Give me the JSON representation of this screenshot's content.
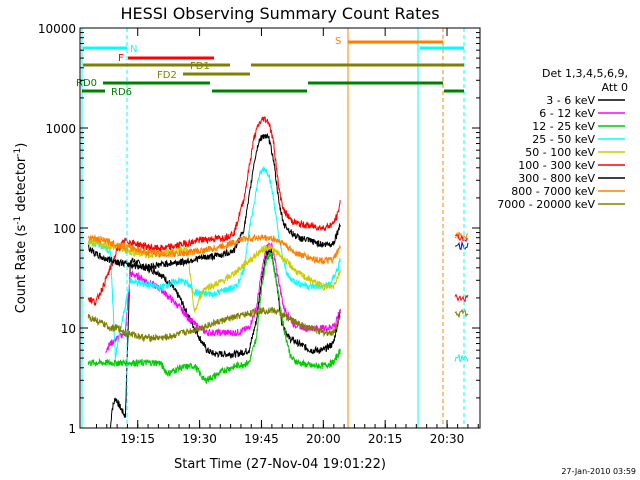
{
  "chart_data": {
    "type": "line",
    "title": "HESSI Observing Summary Count Rates",
    "xlabel": "Start Time (27-Nov-04 19:01:22)",
    "ylabel_main": "Count Rate (s",
    "ylabel_sup1": "-1",
    "ylabel_mid": " detector",
    "ylabel_sup2": "-1",
    "ylabel_end": ")",
    "x_range_minutes": [
      19.0167,
      20.6333
    ],
    "ylim": [
      1,
      10000
    ],
    "yscale": "log",
    "xticks": [
      {
        "t": 19.25,
        "label": "19:15"
      },
      {
        "t": 19.5,
        "label": "19:30"
      },
      {
        "t": 19.75,
        "label": "19:45"
      },
      {
        "t": 20.0,
        "label": "20:00"
      },
      {
        "t": 20.25,
        "label": "20:15"
      },
      {
        "t": 20.5,
        "label": "20:30"
      }
    ],
    "yticks": [
      {
        "v": 1,
        "label": "1"
      },
      {
        "v": 10,
        "label": "10"
      },
      {
        "v": 100,
        "label": "100"
      },
      {
        "v": 1000,
        "label": "1000"
      },
      {
        "v": 10000,
        "label": "10000"
      }
    ],
    "legend": {
      "header": [
        "Det 1,3,4,5,6,9,",
        "Att 0"
      ],
      "position": "right"
    },
    "series": [
      {
        "name": "3 - 6 keV",
        "color": "#000000",
        "points": [
          [
            19.14,
            1.0
          ],
          [
            19.145,
            1.5
          ],
          [
            19.16,
            2.0
          ],
          [
            19.18,
            1.6
          ],
          [
            19.2,
            1.3
          ],
          [
            19.22,
            48
          ],
          [
            19.25,
            45
          ],
          [
            19.28,
            40
          ],
          [
            19.31,
            38
          ],
          [
            19.34,
            35
          ],
          [
            19.38,
            28
          ],
          [
            19.42,
            20
          ],
          [
            19.45,
            14
          ],
          [
            19.48,
            10
          ],
          [
            19.5,
            8
          ],
          [
            19.53,
            6
          ],
          [
            19.56,
            5.5
          ],
          [
            19.6,
            5.5
          ],
          [
            19.65,
            5.5
          ],
          [
            19.7,
            6
          ],
          [
            19.73,
            12
          ],
          [
            19.75,
            30
          ],
          [
            19.77,
            55
          ],
          [
            19.79,
            60
          ],
          [
            19.81,
            30
          ],
          [
            19.83,
            12
          ],
          [
            19.86,
            8
          ],
          [
            19.9,
            7
          ],
          [
            19.95,
            6
          ],
          [
            20.0,
            6
          ],
          [
            20.04,
            7
          ],
          [
            20.07,
            15
          ]
        ]
      },
      {
        "name": "6 - 12 keV",
        "color": "#ff00ff",
        "points": [
          [
            19.12,
            6
          ],
          [
            19.14,
            7
          ],
          [
            19.17,
            8
          ],
          [
            19.2,
            9
          ],
          [
            19.22,
            35
          ],
          [
            19.26,
            32
          ],
          [
            19.3,
            28
          ],
          [
            19.34,
            25
          ],
          [
            19.38,
            20
          ],
          [
            19.42,
            16
          ],
          [
            19.45,
            13
          ],
          [
            19.48,
            11
          ],
          [
            19.5,
            10
          ],
          [
            19.53,
            9
          ],
          [
            19.56,
            9
          ],
          [
            19.6,
            9
          ],
          [
            19.65,
            9
          ],
          [
            19.7,
            10
          ],
          [
            19.73,
            16
          ],
          [
            19.75,
            35
          ],
          [
            19.77,
            65
          ],
          [
            19.79,
            70
          ],
          [
            19.81,
            40
          ],
          [
            19.84,
            16
          ],
          [
            19.88,
            11
          ],
          [
            19.93,
            10
          ],
          [
            19.98,
            10
          ],
          [
            20.02,
            10
          ],
          [
            20.05,
            11
          ],
          [
            20.07,
            16
          ]
        ]
      },
      {
        "name": "12 - 25 keV",
        "color": "#00cc00",
        "points": [
          [
            19.05,
            4.5
          ],
          [
            19.1,
            4.5
          ],
          [
            19.15,
            4.5
          ],
          [
            19.2,
            4.5
          ],
          [
            19.25,
            4.5
          ],
          [
            19.3,
            4.5
          ],
          [
            19.34,
            4.5
          ],
          [
            19.37,
            3.5
          ],
          [
            19.42,
            4
          ],
          [
            19.48,
            4.2
          ],
          [
            19.52,
            3
          ],
          [
            19.56,
            3.3
          ],
          [
            19.6,
            3.8
          ],
          [
            19.65,
            4.2
          ],
          [
            19.7,
            4.5
          ],
          [
            19.73,
            8
          ],
          [
            19.75,
            25
          ],
          [
            19.77,
            50
          ],
          [
            19.79,
            55
          ],
          [
            19.81,
            30
          ],
          [
            19.84,
            10
          ],
          [
            19.87,
            5
          ],
          [
            19.9,
            4.5
          ],
          [
            19.95,
            4.2
          ],
          [
            20.0,
            4.2
          ],
          [
            20.04,
            4.5
          ],
          [
            20.07,
            6
          ]
        ]
      },
      {
        "name": "25 - 50 keV",
        "color": "#00ffff",
        "points": [
          [
            19.05,
            72
          ],
          [
            19.1,
            68
          ],
          [
            19.12,
            63
          ],
          [
            19.14,
            55
          ],
          [
            19.16,
            5
          ],
          [
            19.17,
            7
          ],
          [
            19.22,
            30
          ],
          [
            19.26,
            28
          ],
          [
            19.3,
            27
          ],
          [
            19.34,
            25
          ],
          [
            19.38,
            28
          ],
          [
            19.42,
            30
          ],
          [
            19.45,
            28
          ],
          [
            19.48,
            23
          ],
          [
            19.52,
            22
          ],
          [
            19.56,
            22
          ],
          [
            19.6,
            24
          ],
          [
            19.65,
            26
          ],
          [
            19.68,
            40
          ],
          [
            19.7,
            90
          ],
          [
            19.72,
            180
          ],
          [
            19.74,
            330
          ],
          [
            19.76,
            400
          ],
          [
            19.78,
            350
          ],
          [
            19.8,
            190
          ],
          [
            19.82,
            80
          ],
          [
            19.84,
            45
          ],
          [
            19.86,
            32
          ],
          [
            19.9,
            28
          ],
          [
            19.95,
            26
          ],
          [
            20.0,
            26
          ],
          [
            20.03,
            28
          ],
          [
            20.06,
            40
          ],
          [
            20.07,
            50
          ]
        ]
      },
      {
        "name": "50 - 100 keV",
        "color": "#cccc00",
        "points": [
          [
            19.05,
            72
          ],
          [
            19.1,
            68
          ],
          [
            19.14,
            65
          ],
          [
            19.18,
            62
          ],
          [
            19.22,
            58
          ],
          [
            19.26,
            55
          ],
          [
            19.3,
            54
          ],
          [
            19.34,
            55
          ],
          [
            19.38,
            58
          ],
          [
            19.42,
            62
          ],
          [
            19.45,
            60
          ],
          [
            19.48,
            14
          ],
          [
            19.5,
            20
          ],
          [
            19.52,
            25
          ],
          [
            19.56,
            27
          ],
          [
            19.6,
            30
          ],
          [
            19.65,
            37
          ],
          [
            19.7,
            47
          ],
          [
            19.75,
            60
          ],
          [
            19.78,
            65
          ],
          [
            19.82,
            55
          ],
          [
            19.86,
            44
          ],
          [
            19.9,
            35
          ],
          [
            19.95,
            30
          ],
          [
            20.0,
            26
          ],
          [
            20.04,
            26
          ],
          [
            20.07,
            38
          ]
        ]
      },
      {
        "name": "100 - 300 keV",
        "color": "#ff0000",
        "points": [
          [
            19.05,
            20
          ],
          [
            19.08,
            18
          ],
          [
            19.11,
            26
          ],
          [
            19.14,
            40
          ],
          [
            19.17,
            62
          ],
          [
            19.2,
            75
          ],
          [
            19.24,
            70
          ],
          [
            19.28,
            66
          ],
          [
            19.32,
            63
          ],
          [
            19.36,
            63
          ],
          [
            19.4,
            66
          ],
          [
            19.44,
            70
          ],
          [
            19.47,
            72
          ],
          [
            19.5,
            76
          ],
          [
            19.55,
            78
          ],
          [
            19.6,
            80
          ],
          [
            19.64,
            90
          ],
          [
            19.68,
            200
          ],
          [
            19.7,
            400
          ],
          [
            19.72,
            800
          ],
          [
            19.74,
            1100
          ],
          [
            19.76,
            1250
          ],
          [
            19.78,
            1150
          ],
          [
            19.8,
            700
          ],
          [
            19.82,
            250
          ],
          [
            19.84,
            150
          ],
          [
            19.87,
            120
          ],
          [
            19.9,
            110
          ],
          [
            19.95,
            105
          ],
          [
            20.0,
            100
          ],
          [
            20.04,
            110
          ],
          [
            20.06,
            140
          ],
          [
            20.07,
            200
          ]
        ]
      },
      {
        "name": "300 - 800 keV",
        "color": "#000000",
        "points": [
          [
            19.05,
            64
          ],
          [
            19.08,
            55
          ],
          [
            19.11,
            50
          ],
          [
            19.14,
            48
          ],
          [
            19.17,
            46
          ],
          [
            19.2,
            44
          ],
          [
            19.24,
            42
          ],
          [
            19.28,
            41
          ],
          [
            19.32,
            42
          ],
          [
            19.36,
            44
          ],
          [
            19.4,
            45
          ],
          [
            19.44,
            46
          ],
          [
            19.47,
            48
          ],
          [
            19.5,
            50
          ],
          [
            19.55,
            52
          ],
          [
            19.6,
            55
          ],
          [
            19.64,
            60
          ],
          [
            19.68,
            100
          ],
          [
            19.7,
            200
          ],
          [
            19.72,
            450
          ],
          [
            19.74,
            750
          ],
          [
            19.76,
            850
          ],
          [
            19.78,
            780
          ],
          [
            19.8,
            480
          ],
          [
            19.82,
            180
          ],
          [
            19.84,
            110
          ],
          [
            19.87,
            90
          ],
          [
            19.9,
            80
          ],
          [
            19.95,
            74
          ],
          [
            20.0,
            68
          ],
          [
            20.04,
            70
          ],
          [
            20.07,
            110
          ]
        ]
      },
      {
        "name": "800 - 7000 keV",
        "color": "#ff8000",
        "points": [
          [
            19.05,
            82
          ],
          [
            19.08,
            78
          ],
          [
            19.11,
            75
          ],
          [
            19.14,
            72
          ],
          [
            19.17,
            68
          ],
          [
            19.2,
            65
          ],
          [
            19.24,
            62
          ],
          [
            19.28,
            58
          ],
          [
            19.32,
            56
          ],
          [
            19.36,
            55
          ],
          [
            19.4,
            55
          ],
          [
            19.44,
            56
          ],
          [
            19.47,
            58
          ],
          [
            19.5,
            59
          ],
          [
            19.55,
            62
          ],
          [
            19.6,
            67
          ],
          [
            19.64,
            72
          ],
          [
            19.68,
            78
          ],
          [
            19.72,
            80
          ],
          [
            19.76,
            80
          ],
          [
            19.8,
            78
          ],
          [
            19.84,
            70
          ],
          [
            19.87,
            60
          ],
          [
            19.9,
            55
          ],
          [
            19.95,
            50
          ],
          [
            20.0,
            47
          ],
          [
            20.04,
            48
          ],
          [
            20.07,
            65
          ]
        ]
      },
      {
        "name": "7000 - 20000 keV",
        "color": "#808000",
        "points": [
          [
            19.05,
            13
          ],
          [
            19.08,
            12
          ],
          [
            19.11,
            11
          ],
          [
            19.14,
            10
          ],
          [
            19.17,
            10
          ],
          [
            19.2,
            9
          ],
          [
            19.24,
            8.5
          ],
          [
            19.28,
            8
          ],
          [
            19.32,
            8
          ],
          [
            19.36,
            8
          ],
          [
            19.4,
            8.5
          ],
          [
            19.44,
            9
          ],
          [
            19.47,
            9.5
          ],
          [
            19.5,
            10
          ],
          [
            19.55,
            11
          ],
          [
            19.6,
            12
          ],
          [
            19.65,
            13
          ],
          [
            19.7,
            14
          ],
          [
            19.75,
            15
          ],
          [
            19.8,
            15
          ],
          [
            19.85,
            13
          ],
          [
            19.9,
            11
          ],
          [
            19.95,
            10
          ],
          [
            20.0,
            9
          ],
          [
            20.04,
            9
          ],
          [
            20.07,
            13
          ]
        ]
      }
    ],
    "annotations": [
      {
        "label": "N",
        "color": "#00ffff"
      },
      {
        "label": "F",
        "color": "#ff0000"
      },
      {
        "label": "FD1",
        "color": "#808000"
      },
      {
        "label": "FD2",
        "color": "#808000"
      },
      {
        "label": "RD0",
        "color": "#008000"
      },
      {
        "label": "RD6",
        "color": "#008000"
      },
      {
        "label": "S",
        "color": "#ff8000"
      }
    ],
    "tail_series": [
      {
        "color": "#ff8000",
        "v": 85
      },
      {
        "color": "#ff0000",
        "v": 80
      },
      {
        "color": "#0000ff",
        "v": 67
      },
      {
        "color": "#ff0000",
        "v": 20
      },
      {
        "color": "#808000",
        "v": 14
      },
      {
        "color": "#00ffff",
        "v": 5
      }
    ]
  },
  "footer": {
    "timestamp": "27-Jan-2010 03:59"
  }
}
